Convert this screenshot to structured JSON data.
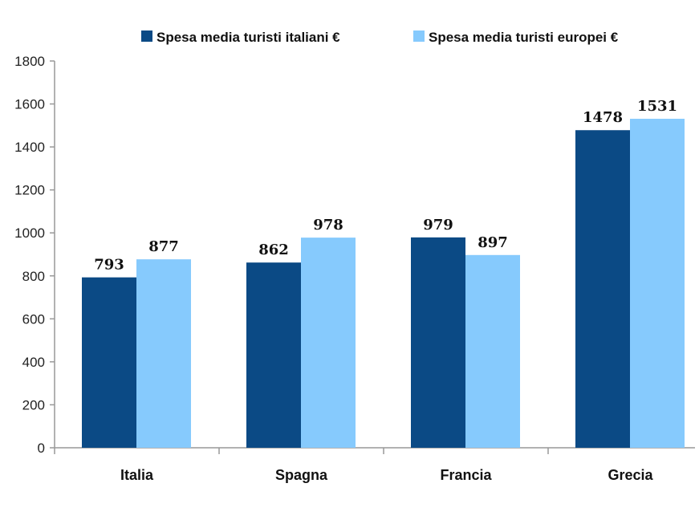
{
  "chart_data": {
    "type": "bar",
    "title": "",
    "xlabel": "",
    "ylabel": "",
    "categories": [
      "Italia",
      "Spagna",
      "Francia",
      "Grecia"
    ],
    "series": [
      {
        "name": "Spesa media turisti italiani €",
        "color": "#0b4a85",
        "values": [
          793,
          862,
          979,
          1478
        ]
      },
      {
        "name": "Spesa media turisti europei €",
        "color": "#86cafd",
        "values": [
          877,
          978,
          897,
          1531
        ]
      }
    ],
    "ylim": [
      0,
      1800
    ],
    "yticks": [
      0,
      200,
      400,
      600,
      800,
      1000,
      1200,
      1400,
      1600,
      1800
    ],
    "grid": false,
    "legend": "top",
    "data_labels": true
  }
}
